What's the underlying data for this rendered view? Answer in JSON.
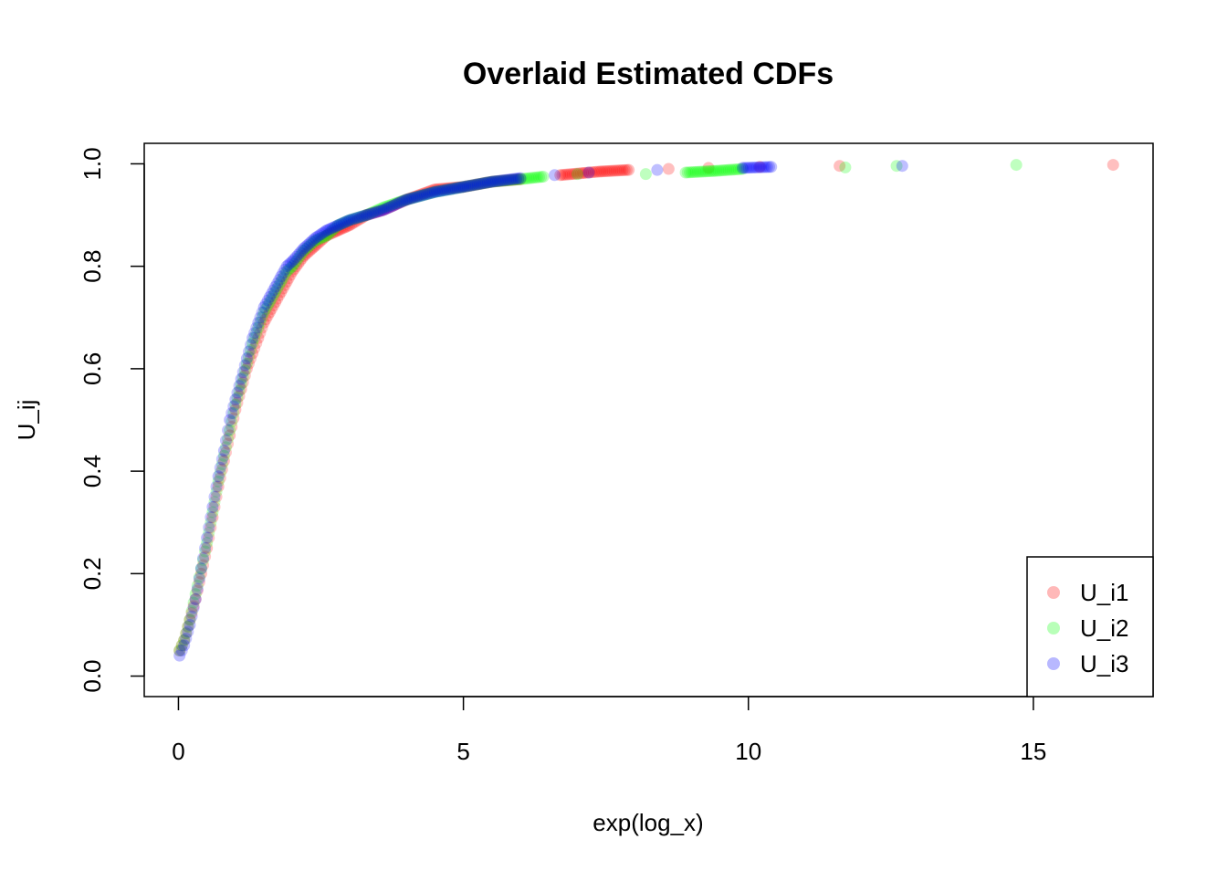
{
  "chart_data": {
    "type": "scatter",
    "title": "Overlaid Estimated CDFs",
    "xlabel": "exp(log_x)",
    "ylabel": "U_ij",
    "xlim": [
      -0.6,
      17.1
    ],
    "ylim": [
      -0.04,
      1.04
    ],
    "x_ticks": [
      "0",
      "5",
      "10",
      "15"
    ],
    "y_ticks": [
      "0.0",
      "0.2",
      "0.4",
      "0.6",
      "0.8",
      "1.0"
    ],
    "grid": false,
    "legend_position": "bottom-right",
    "series": [
      {
        "name": "U_i1",
        "color": "#ff0000",
        "points": [
          [
            0.02,
            0.05
          ],
          [
            0.1,
            0.07
          ],
          [
            0.2,
            0.11
          ],
          [
            0.3,
            0.15
          ],
          [
            0.4,
            0.2
          ],
          [
            0.5,
            0.25
          ],
          [
            0.6,
            0.31
          ],
          [
            0.7,
            0.37
          ],
          [
            0.8,
            0.42
          ],
          [
            0.9,
            0.47
          ],
          [
            1.0,
            0.52
          ],
          [
            1.1,
            0.56
          ],
          [
            1.2,
            0.6
          ],
          [
            1.3,
            0.63
          ],
          [
            1.4,
            0.66
          ],
          [
            1.5,
            0.69
          ],
          [
            1.6,
            0.71
          ],
          [
            1.7,
            0.73
          ],
          [
            1.8,
            0.75
          ],
          [
            1.9,
            0.77
          ],
          [
            2.0,
            0.79
          ],
          [
            2.2,
            0.82
          ],
          [
            2.4,
            0.84
          ],
          [
            2.6,
            0.86
          ],
          [
            2.8,
            0.87
          ],
          [
            3.0,
            0.88
          ],
          [
            3.3,
            0.9
          ],
          [
            3.6,
            0.91
          ],
          [
            4.0,
            0.93
          ],
          [
            4.5,
            0.95
          ],
          [
            5.0,
            0.955
          ],
          [
            5.5,
            0.965
          ],
          [
            6.0,
            0.97
          ],
          [
            6.7,
            0.978
          ],
          [
            7.1,
            0.982
          ],
          [
            7.4,
            0.985
          ],
          [
            7.9,
            0.988
          ],
          [
            8.6,
            0.99
          ],
          [
            9.3,
            0.992
          ],
          [
            10.2,
            0.994
          ],
          [
            11.6,
            0.996
          ],
          [
            16.4,
            0.998
          ]
        ]
      },
      {
        "name": "U_i2",
        "color": "#00ff00",
        "points": [
          [
            0.02,
            0.05
          ],
          [
            0.1,
            0.07
          ],
          [
            0.2,
            0.11
          ],
          [
            0.3,
            0.16
          ],
          [
            0.4,
            0.21
          ],
          [
            0.5,
            0.26
          ],
          [
            0.6,
            0.32
          ],
          [
            0.7,
            0.38
          ],
          [
            0.8,
            0.43
          ],
          [
            0.9,
            0.48
          ],
          [
            1.0,
            0.53
          ],
          [
            1.1,
            0.57
          ],
          [
            1.2,
            0.61
          ],
          [
            1.3,
            0.65
          ],
          [
            1.4,
            0.68
          ],
          [
            1.5,
            0.71
          ],
          [
            1.6,
            0.73
          ],
          [
            1.7,
            0.75
          ],
          [
            1.8,
            0.77
          ],
          [
            1.9,
            0.79
          ],
          [
            2.0,
            0.8
          ],
          [
            2.2,
            0.83
          ],
          [
            2.4,
            0.85
          ],
          [
            2.6,
            0.86
          ],
          [
            2.8,
            0.88
          ],
          [
            3.0,
            0.89
          ],
          [
            3.3,
            0.9
          ],
          [
            3.6,
            0.915
          ],
          [
            4.0,
            0.93
          ],
          [
            4.5,
            0.945
          ],
          [
            5.0,
            0.955
          ],
          [
            5.5,
            0.965
          ],
          [
            6.0,
            0.97
          ],
          [
            6.4,
            0.975
          ],
          [
            7.0,
            0.98
          ],
          [
            8.2,
            0.98
          ],
          [
            8.9,
            0.983
          ],
          [
            9.4,
            0.986
          ],
          [
            9.9,
            0.99
          ],
          [
            11.7,
            0.993
          ],
          [
            12.6,
            0.996
          ],
          [
            14.7,
            0.998
          ]
        ]
      },
      {
        "name": "U_i3",
        "color": "#0000ff",
        "points": [
          [
            0.02,
            0.04
          ],
          [
            0.1,
            0.06
          ],
          [
            0.2,
            0.1
          ],
          [
            0.3,
            0.15
          ],
          [
            0.4,
            0.21
          ],
          [
            0.5,
            0.27
          ],
          [
            0.6,
            0.33
          ],
          [
            0.7,
            0.39
          ],
          [
            0.8,
            0.44
          ],
          [
            0.9,
            0.5
          ],
          [
            1.0,
            0.54
          ],
          [
            1.1,
            0.58
          ],
          [
            1.2,
            0.62
          ],
          [
            1.3,
            0.66
          ],
          [
            1.4,
            0.69
          ],
          [
            1.5,
            0.72
          ],
          [
            1.6,
            0.74
          ],
          [
            1.7,
            0.76
          ],
          [
            1.8,
            0.78
          ],
          [
            1.9,
            0.8
          ],
          [
            2.0,
            0.81
          ],
          [
            2.2,
            0.835
          ],
          [
            2.4,
            0.855
          ],
          [
            2.6,
            0.87
          ],
          [
            2.8,
            0.88
          ],
          [
            3.0,
            0.89
          ],
          [
            3.3,
            0.9
          ],
          [
            3.6,
            0.91
          ],
          [
            4.0,
            0.93
          ],
          [
            4.5,
            0.945
          ],
          [
            5.0,
            0.955
          ],
          [
            5.5,
            0.965
          ],
          [
            6.0,
            0.972
          ],
          [
            6.6,
            0.978
          ],
          [
            7.2,
            0.983
          ],
          [
            8.4,
            0.988
          ],
          [
            9.9,
            0.992
          ],
          [
            10.4,
            0.994
          ],
          [
            12.7,
            0.996
          ]
        ]
      }
    ]
  }
}
